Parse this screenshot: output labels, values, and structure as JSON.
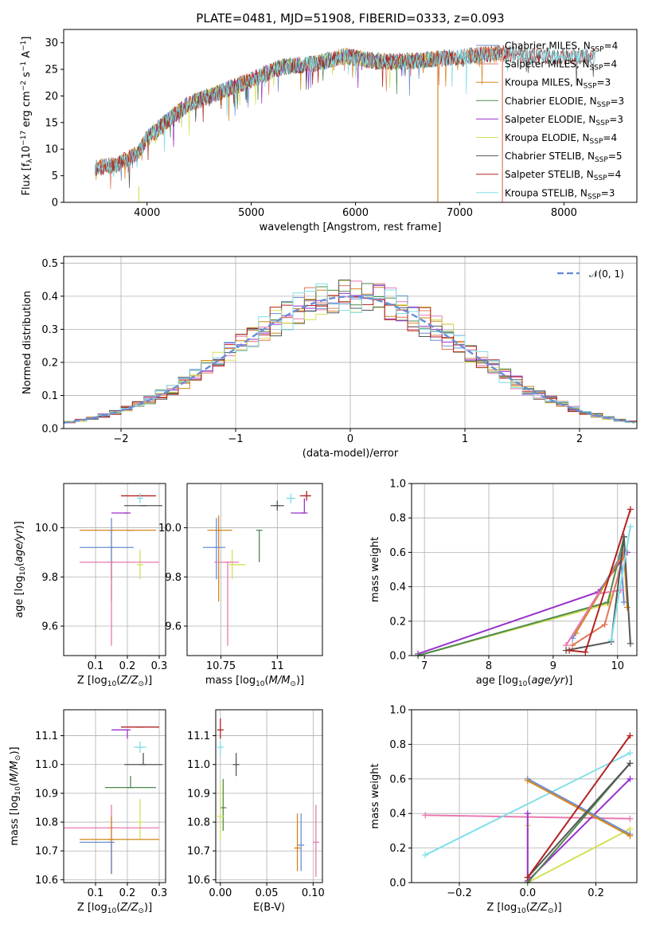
{
  "colors": {
    "chabrier_miles": "#6b8fd6",
    "salpeter_miles": "#e0785a",
    "kroupa_miles": "#d4861d",
    "chabrier_elodie": "#4f8a4f",
    "salpeter_elodie": "#9932cc",
    "kroupa_elodie": "#d4e157",
    "chabrier_stelib": "#555555",
    "salpeter_stelib": "#b22222",
    "kroupa_stelib": "#80dfe8",
    "pink": "#e87ab0"
  },
  "chart_data": [
    {
      "id": "spectrum",
      "type": "line",
      "title": "PLATE=0481, MJD=51908, FIBERID=0333, z=0.093",
      "xlabel": "wavelength [Angstrom, rest frame]",
      "ylabel": "Flux [f",
      "ylabel_parts": [
        "Flux [f",
        "λ",
        "10",
        "−17",
        " erg cm",
        "−2",
        " s",
        "−1",
        " A",
        "−1",
        "]"
      ],
      "xlim": [
        3200,
        8700
      ],
      "ylim": [
        0,
        32.5
      ],
      "xticks": [
        4000,
        5000,
        6000,
        7000,
        8000
      ],
      "yticks": [
        0,
        5,
        10,
        15,
        20,
        25,
        30
      ],
      "grid": false,
      "legend_position": "top-right",
      "continuum": [
        [
          3500,
          6.5
        ],
        [
          3700,
          7
        ],
        [
          3900,
          9
        ],
        [
          4000,
          12
        ],
        [
          4200,
          15.5
        ],
        [
          4400,
          18.5
        ],
        [
          4600,
          20
        ],
        [
          4800,
          21.5
        ],
        [
          5000,
          23
        ],
        [
          5300,
          25.5
        ],
        [
          5600,
          26
        ],
        [
          5900,
          27.5
        ],
        [
          6200,
          26.5
        ],
        [
          6500,
          26.5
        ],
        [
          6800,
          27
        ],
        [
          7100,
          27.5
        ],
        [
          7400,
          28
        ],
        [
          7700,
          27.5
        ],
        [
          8000,
          27.5
        ],
        [
          8300,
          27.5
        ]
      ],
      "series": [
        {
          "name": "Chabrier MILES, N",
          "sub": "SSP",
          "eq": "=4",
          "color_key": "chabrier_miles",
          "x_range": [
            3500,
            7400
          ]
        },
        {
          "name": "Salpeter MILES, N",
          "sub": "SSP",
          "eq": "=4",
          "color_key": "salpeter_miles",
          "x_range": [
            3500,
            7400
          ]
        },
        {
          "name": "Kroupa MILES, N",
          "sub": "SSP",
          "eq": "=3",
          "color_key": "kroupa_miles",
          "x_range": [
            3500,
            7400
          ]
        },
        {
          "name": "Chabrier ELODIE, N",
          "sub": "SSP",
          "eq": "=3",
          "color_key": "chabrier_elodie",
          "x_range": [
            3900,
            6800
          ]
        },
        {
          "name": "Salpeter ELODIE, N",
          "sub": "SSP",
          "eq": "=3",
          "color_key": "salpeter_elodie",
          "x_range": [
            3900,
            6800
          ]
        },
        {
          "name": "Kroupa ELODIE, N",
          "sub": "SSP",
          "eq": "=4",
          "color_key": "kroupa_elodie",
          "x_range": [
            3900,
            6800
          ]
        },
        {
          "name": "Chabrier STELIB, N",
          "sub": "SSP",
          "eq": "=5",
          "color_key": "chabrier_stelib",
          "x_range": [
            3500,
            8300
          ]
        },
        {
          "name": "Salpeter STELIB, N",
          "sub": "SSP",
          "eq": "=4",
          "color_key": "salpeter_stelib",
          "x_range": [
            3500,
            8300
          ]
        },
        {
          "name": "Kroupa STELIB, N",
          "sub": "SSP",
          "eq": "=3",
          "color_key": "kroupa_stelib",
          "x_range": [
            3500,
            8300
          ]
        }
      ]
    },
    {
      "id": "residuals",
      "type": "histogram",
      "xlabel": "(data-model)/error",
      "ylabel": "Normed distribution",
      "xlim": [
        -2.5,
        2.5
      ],
      "ylim": [
        0,
        0.52
      ],
      "xticks": [
        -2,
        -1,
        0,
        1,
        2
      ],
      "yticks": [
        0.0,
        0.1,
        0.2,
        0.3,
        0.4,
        0.5
      ],
      "grid": true,
      "legend_position": "top-right",
      "gaussian_label": "𝒩(0, 1)",
      "gaussian_color_key": "chabrier_miles",
      "bin_width": 0.1
    },
    {
      "id": "age_vs_z",
      "type": "errorbar",
      "xlabel": "Z [log",
      "xlabel_parts": [
        "Z [log",
        "10",
        "(Z/Z",
        "⊙",
        ")]"
      ],
      "ylabel": "age  [log",
      "ylabel_parts": [
        "age  [log",
        "10",
        "(age/yr)]"
      ],
      "xlim": [
        0.0,
        0.32
      ],
      "ylim": [
        9.48,
        10.18
      ],
      "xticks": [
        0.1,
        0.2,
        0.3
      ],
      "yticks": [
        9.6,
        9.8,
        10.0
      ],
      "grid": true,
      "points": [
        {
          "c": "salpeter_stelib",
          "x": 0.24,
          "xe": [
            0.06,
            0.05
          ],
          "y": 10.13,
          "ye": [
            0.0,
            0.0
          ]
        },
        {
          "c": "kroupa_stelib",
          "x": 0.24,
          "xe": [
            0.0,
            0.0
          ],
          "y": 10.12,
          "ye": [
            0.02,
            0.02
          ]
        },
        {
          "c": "chabrier_stelib",
          "x": 0.25,
          "xe": [
            0.06,
            0.06
          ],
          "y": 10.09,
          "ye": [
            0.0,
            0.0
          ]
        },
        {
          "c": "salpeter_elodie",
          "x": 0.2,
          "xe": [
            0.05,
            0.0
          ],
          "y": 10.06,
          "ye": [
            0.0,
            0.0
          ]
        },
        {
          "c": "chabrier_elodie",
          "x": 0.21,
          "xe": [
            0.0,
            0.0
          ],
          "y": 9.99,
          "ye": [
            0.0,
            0.0
          ]
        },
        {
          "c": "kroupa_miles",
          "x": 0.15,
          "xe": [
            0.1,
            0.14
          ],
          "y": 9.99,
          "ye": [
            0.29,
            0.0
          ]
        },
        {
          "c": "chabrier_miles",
          "x": 0.15,
          "xe": [
            0.1,
            0.07
          ],
          "y": 9.92,
          "ye": [
            0.13,
            0.12
          ]
        },
        {
          "c": "kroupa_elodie",
          "x": 0.24,
          "xe": [
            0.0,
            0.0
          ],
          "y": 9.85,
          "ye": [
            0.06,
            0.06
          ]
        },
        {
          "c": "pink",
          "x": 0.15,
          "xe": [
            0.1,
            0.15
          ],
          "y": 9.86,
          "ye": [
            0.34,
            0.0
          ]
        }
      ]
    },
    {
      "id": "age_vs_mass",
      "type": "errorbar",
      "xlabel": "mass [log",
      "xlabel_parts": [
        "mass [log",
        "10",
        "(M/M",
        "⊙",
        ")]"
      ],
      "xlim": [
        10.6,
        11.2
      ],
      "ylim": [
        9.48,
        10.18
      ],
      "xticks": [
        10.75,
        11.0
      ],
      "yticks": [
        9.6,
        9.8,
        10.0
      ],
      "grid": true,
      "points": [
        {
          "c": "salpeter_stelib",
          "x": 11.13,
          "xe": [
            0.03,
            0.02
          ],
          "y": 10.13,
          "ye": [
            0.02,
            0.02
          ]
        },
        {
          "c": "kroupa_stelib",
          "x": 11.06,
          "xe": [
            0.02,
            0.02
          ],
          "y": 10.12,
          "ye": [
            0.02,
            0.02
          ]
        },
        {
          "c": "chabrier_stelib",
          "x": 11.0,
          "xe": [
            0.03,
            0.03
          ],
          "y": 10.09,
          "ye": [
            0.02,
            0.02
          ]
        },
        {
          "c": "salpeter_elodie",
          "x": 11.12,
          "xe": [
            0.06,
            0.0
          ],
          "y": 10.06,
          "ye": [
            0.0,
            0.06
          ]
        },
        {
          "c": "chabrier_elodie",
          "x": 10.92,
          "xe": [
            0.0,
            0.0
          ],
          "y": 9.99,
          "ye": [
            0.13,
            0.0
          ]
        },
        {
          "c": "kroupa_miles",
          "x": 10.74,
          "xe": [
            0.05,
            0.06
          ],
          "y": 9.99,
          "ye": [
            0.29,
            0.06
          ]
        },
        {
          "c": "chabrier_miles",
          "x": 10.73,
          "xe": [
            0.06,
            0.04
          ],
          "y": 9.92,
          "ye": [
            0.13,
            0.12
          ]
        },
        {
          "c": "kroupa_elodie",
          "x": 10.8,
          "xe": [
            0.0,
            0.06
          ],
          "y": 9.85,
          "ye": [
            0.06,
            0.06
          ]
        },
        {
          "c": "pink",
          "x": 10.78,
          "xe": [
            0.06,
            0.05
          ],
          "y": 9.86,
          "ye": [
            0.34,
            0.0
          ]
        }
      ]
    },
    {
      "id": "mass_weight_vs_age",
      "type": "line",
      "xlabel": "age  [log",
      "xlabel_parts": [
        "age  [log",
        "10",
        "(age/yr)]"
      ],
      "ylabel": "mass weight",
      "xlim": [
        6.8,
        10.3
      ],
      "ylim": [
        0.0,
        1.0
      ],
      "xticks": [
        7,
        8,
        9,
        10
      ],
      "yticks": [
        0.0,
        0.2,
        0.4,
        0.6,
        0.8,
        1.0
      ],
      "grid": true,
      "series": [
        {
          "c": "kroupa_elodie",
          "x": [
            6.9,
            9.85,
            9.9
          ],
          "y": [
            0.0,
            0.3,
            0.35
          ]
        },
        {
          "c": "salpeter_elodie",
          "x": [
            6.9,
            9.7,
            10.15
          ],
          "y": [
            0.01,
            0.37,
            0.6
          ]
        },
        {
          "c": "chabrier_elodie",
          "x": [
            6.9,
            9.85,
            10.1
          ],
          "y": [
            0.0,
            0.31,
            0.69
          ]
        },
        {
          "c": "chabrier_miles",
          "x": [
            9.3,
            10.05,
            10.1
          ],
          "y": [
            0.1,
            0.58,
            0.31
          ]
        },
        {
          "c": "kroupa_miles",
          "x": [
            9.35,
            10.1,
            10.15
          ],
          "y": [
            0.13,
            0.6,
            0.28
          ]
        },
        {
          "c": "pink",
          "x": [
            9.2,
            9.7,
            10.05
          ],
          "y": [
            0.06,
            0.36,
            0.38
          ]
        },
        {
          "c": "salpeter_miles",
          "x": [
            9.3,
            9.8,
            10.1
          ],
          "y": [
            0.06,
            0.18,
            0.59
          ]
        },
        {
          "c": "chabrier_stelib",
          "x": [
            9.2,
            9.9,
            10.1,
            10.2
          ],
          "y": [
            0.03,
            0.08,
            0.69,
            0.07
          ]
        },
        {
          "c": "salpeter_stelib",
          "x": [
            9.25,
            9.5,
            10.2
          ],
          "y": [
            0.03,
            0.02,
            0.85
          ]
        },
        {
          "c": "kroupa_stelib",
          "x": [
            9.9,
            10.2
          ],
          "y": [
            0.09,
            0.75
          ]
        }
      ]
    },
    {
      "id": "mass_vs_z",
      "type": "errorbar",
      "xlabel": "Z [log",
      "xlabel_parts": [
        "Z [log",
        "10",
        "(Z/Z",
        "⊙",
        ")]"
      ],
      "ylabel": "mass [log",
      "ylabel_parts": [
        "mass [log",
        "10",
        "(M/M",
        "⊙",
        ")]"
      ],
      "xlim": [
        0.0,
        0.32
      ],
      "ylim": [
        10.59,
        11.19
      ],
      "xticks": [
        0.1,
        0.2,
        0.3
      ],
      "yticks": [
        10.6,
        10.7,
        10.8,
        10.9,
        11.0,
        11.1
      ],
      "grid": true,
      "points": [
        {
          "c": "salpeter_stelib",
          "x": 0.24,
          "xe": [
            0.06,
            0.06
          ],
          "y": 11.13,
          "ye": [
            0.0,
            0.0
          ]
        },
        {
          "c": "salpeter_elodie",
          "x": 0.2,
          "xe": [
            0.05,
            0.0
          ],
          "y": 11.12,
          "ye": [
            0.03,
            0.0
          ]
        },
        {
          "c": "kroupa_stelib",
          "x": 0.24,
          "xe": [
            0.02,
            0.02
          ],
          "y": 11.06,
          "ye": [
            0.02,
            0.02
          ]
        },
        {
          "c": "chabrier_stelib",
          "x": 0.25,
          "xe": [
            0.06,
            0.06
          ],
          "y": 11.0,
          "ye": [
            0.0,
            0.04
          ]
        },
        {
          "c": "chabrier_elodie",
          "x": 0.21,
          "xe": [
            0.08,
            0.08
          ],
          "y": 10.92,
          "ye": [
            0.0,
            0.04
          ]
        },
        {
          "c": "kroupa_elodie",
          "x": 0.24,
          "xe": [
            0.0,
            0.0
          ],
          "y": 10.8,
          "ye": [
            0.06,
            0.08
          ]
        },
        {
          "c": "pink",
          "x": 0.15,
          "xe": [
            0.15,
            0.15
          ],
          "y": 10.78,
          "ye": [
            0.16,
            0.08
          ]
        },
        {
          "c": "kroupa_miles",
          "x": 0.15,
          "xe": [
            0.1,
            0.15
          ],
          "y": 10.74,
          "ye": [
            0.12,
            0.08
          ]
        },
        {
          "c": "chabrier_miles",
          "x": 0.15,
          "xe": [
            0.1,
            0.0
          ],
          "y": 10.73,
          "ye": [
            0.11,
            0.0
          ]
        }
      ]
    },
    {
      "id": "mass_vs_ebv",
      "type": "errorbar",
      "xlabel": "E(B-V)",
      "xlim": [
        -0.005,
        0.11
      ],
      "ylim": [
        10.59,
        11.19
      ],
      "xticks": [
        0.0,
        0.05,
        0.1
      ],
      "xtick_labels": [
        "0.00",
        "0.05",
        "0.10"
      ],
      "yticks": [
        10.6,
        10.7,
        10.8,
        10.9,
        11.0,
        11.1
      ],
      "grid": true,
      "points": [
        {
          "c": "salpeter_stelib",
          "x": 0.0,
          "y": 11.12,
          "ye": [
            0.03,
            0.04
          ]
        },
        {
          "c": "kroupa_stelib",
          "x": 0.0,
          "y": 11.06,
          "ye": [
            0.03,
            0.02
          ]
        },
        {
          "c": "chabrier_stelib",
          "x": 0.017,
          "y": 11.0,
          "ye": [
            0.04,
            0.04
          ]
        },
        {
          "c": "chabrier_elodie",
          "x": 0.003,
          "y": 10.85,
          "ye": [
            0.08,
            0.1
          ]
        },
        {
          "c": "kroupa_elodie",
          "x": 0.0,
          "y": 10.82,
          "ye": [
            0.08,
            0.12
          ]
        },
        {
          "c": "kroupa_miles",
          "x": 0.083,
          "y": 10.71,
          "ye": [
            0.08,
            0.12
          ]
        },
        {
          "c": "chabrier_miles",
          "x": 0.087,
          "y": 10.72,
          "ye": [
            0.09,
            0.11
          ]
        },
        {
          "c": "pink",
          "x": 0.103,
          "y": 10.73,
          "ye": [
            0.12,
            0.13
          ]
        }
      ]
    },
    {
      "id": "mass_weight_vs_z",
      "type": "line",
      "xlabel": "Z [log",
      "xlabel_parts": [
        "Z [log",
        "10",
        "(Z/Z",
        "⊙",
        ")]"
      ],
      "ylabel": "mass weight",
      "xlim": [
        -0.34,
        0.32
      ],
      "ylim": [
        0.0,
        1.0
      ],
      "xticks": [
        -0.2,
        0.0,
        0.2
      ],
      "xtick_labels": [
        "−0.2",
        "0.0",
        "0.2"
      ],
      "yticks": [
        0.0,
        0.2,
        0.4,
        0.6,
        0.8,
        1.0
      ],
      "grid": true,
      "series": [
        {
          "c": "pink",
          "x": [
            -0.3,
            0.3
          ],
          "y": [
            0.39,
            0.37
          ]
        },
        {
          "c": "kroupa_stelib",
          "x": [
            -0.3,
            0.3
          ],
          "y": [
            0.16,
            0.75
          ]
        },
        {
          "c": "kroupa_elodie",
          "x": [
            0.0,
            0.0,
            0.3
          ],
          "y": [
            0.33,
            0.0,
            0.31
          ]
        },
        {
          "c": "salpeter_elodie",
          "x": [
            0.0,
            0.0,
            0.3
          ],
          "y": [
            0.4,
            0.01,
            0.6
          ]
        },
        {
          "c": "chabrier_miles",
          "x": [
            0.0,
            0.3
          ],
          "y": [
            0.6,
            0.28
          ]
        },
        {
          "c": "kroupa_miles",
          "x": [
            0.0,
            0.3
          ],
          "y": [
            0.59,
            0.27
          ]
        },
        {
          "c": "chabrier_elodie",
          "x": [
            0.0,
            0.3
          ],
          "y": [
            0.0,
            0.69
          ]
        },
        {
          "c": "chabrier_stelib",
          "x": [
            0.0,
            0.3
          ],
          "y": [
            0.03,
            0.69
          ]
        },
        {
          "c": "salpeter_stelib",
          "x": [
            0.0,
            0.3
          ],
          "y": [
            0.03,
            0.85
          ]
        }
      ]
    }
  ]
}
